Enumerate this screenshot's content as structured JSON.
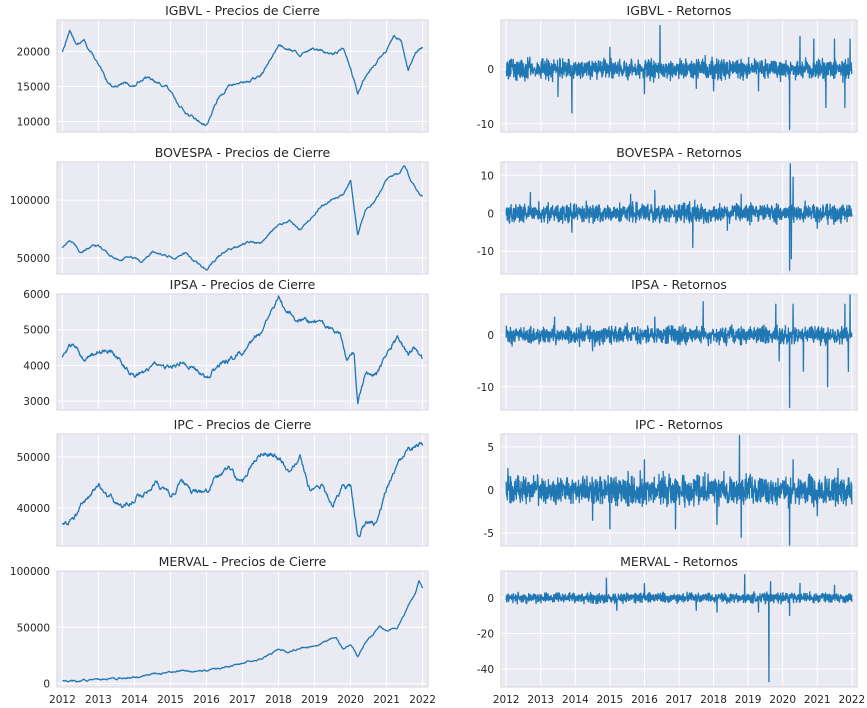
{
  "chart_data": [
    {
      "id": "igbvl-price",
      "type": "line",
      "title": "IGBVL - Precios de Cierre",
      "ylim": [
        8500,
        24500
      ],
      "yticks": [
        10000,
        15000,
        20000
      ],
      "ytick_labels": [
        "10000",
        "15000",
        "20000"
      ],
      "xlim": [
        2011.85,
        2022.15
      ],
      "xticks": [
        2012,
        2013,
        2014,
        2015,
        2016,
        2017,
        2018,
        2019,
        2020,
        2021,
        2022
      ],
      "xtick_labels": [],
      "grid": true,
      "noise": 250,
      "x": [
        2012.0,
        2012.2,
        2012.4,
        2012.6,
        2012.9,
        2013.2,
        2013.4,
        2013.7,
        2014.0,
        2014.3,
        2014.6,
        2014.9,
        2015.2,
        2015.5,
        2015.8,
        2016.0,
        2016.3,
        2016.6,
        2016.9,
        2017.2,
        2017.5,
        2017.8,
        2018.0,
        2018.3,
        2018.6,
        2018.9,
        2019.2,
        2019.5,
        2019.8,
        2020.0,
        2020.2,
        2020.4,
        2020.7,
        2021.0,
        2021.2,
        2021.4,
        2021.6,
        2021.8,
        2022.0
      ],
      "y": [
        20000,
        23000,
        21000,
        21500,
        19000,
        16000,
        15000,
        15500,
        15000,
        16500,
        15500,
        15000,
        12500,
        11000,
        10000,
        9500,
        13000,
        15000,
        15500,
        15800,
        16500,
        19000,
        21000,
        20500,
        19500,
        20500,
        20000,
        19500,
        20500,
        17500,
        14000,
        16500,
        18500,
        20000,
        22500,
        21500,
        17500,
        19500,
        20500
      ]
    },
    {
      "id": "igbvl-returns",
      "type": "line",
      "title": "IGBVL - Retornos",
      "ylim": [
        -11.5,
        9
      ],
      "yticks": [
        -10,
        0
      ],
      "ytick_labels": [
        "-10",
        "0"
      ],
      "xlim": [
        2011.85,
        2022.15
      ],
      "xticks": [
        2012,
        2013,
        2014,
        2015,
        2016,
        2017,
        2018,
        2019,
        2020,
        2021,
        2022
      ],
      "xtick_labels": [],
      "grid": true,
      "noise": 1.8,
      "x": [
        2012.0,
        2022.0
      ],
      "y": [
        0,
        0
      ],
      "spikes": [
        [
          2013.5,
          -5
        ],
        [
          2013.9,
          -8
        ],
        [
          2015.0,
          4
        ],
        [
          2016.0,
          -4.5
        ],
        [
          2016.45,
          8
        ],
        [
          2017.5,
          -3.5
        ],
        [
          2018.0,
          -4
        ],
        [
          2019.3,
          -4
        ],
        [
          2020.2,
          -11
        ],
        [
          2020.5,
          6
        ],
        [
          2020.9,
          5.5
        ],
        [
          2021.25,
          -7
        ],
        [
          2021.5,
          5.5
        ],
        [
          2021.8,
          -7
        ],
        [
          2021.95,
          5.5
        ]
      ]
    },
    {
      "id": "bovespa-price",
      "type": "line",
      "title": "BOVESPA - Precios de Cierre",
      "ylim": [
        36000,
        133000
      ],
      "yticks": [
        50000,
        100000
      ],
      "ytick_labels": [
        "50000",
        "100000"
      ],
      "xlim": [
        2011.85,
        2022.15
      ],
      "xticks": [
        2012,
        2013,
        2014,
        2015,
        2016,
        2017,
        2018,
        2019,
        2020,
        2021,
        2022
      ],
      "xtick_labels": [],
      "grid": true,
      "noise": 1200,
      "x": [
        2012.0,
        2012.2,
        2012.5,
        2012.8,
        2013.0,
        2013.3,
        2013.6,
        2013.9,
        2014.2,
        2014.5,
        2014.8,
        2015.1,
        2015.4,
        2015.7,
        2016.0,
        2016.3,
        2016.6,
        2016.9,
        2017.2,
        2017.5,
        2017.8,
        2018.0,
        2018.3,
        2018.6,
        2018.9,
        2019.2,
        2019.5,
        2019.8,
        2020.0,
        2020.2,
        2020.4,
        2020.7,
        2021.0,
        2021.3,
        2021.5,
        2021.7,
        2021.9,
        2022.0
      ],
      "y": [
        58000,
        66000,
        55000,
        60000,
        60000,
        52000,
        48000,
        52000,
        46000,
        55000,
        52000,
        50000,
        54000,
        46000,
        40000,
        50000,
        57000,
        60000,
        64000,
        63000,
        73000,
        78000,
        82000,
        74000,
        85000,
        95000,
        100000,
        105000,
        116000,
        70000,
        90000,
        100000,
        118000,
        122000,
        130000,
        115000,
        105000,
        104000
      ]
    },
    {
      "id": "bovespa-returns",
      "type": "line",
      "title": "BOVESPA - Retornos",
      "ylim": [
        -16,
        13.5
      ],
      "yticks": [
        -10,
        0,
        10
      ],
      "ytick_labels": [
        "-10",
        "0",
        "10"
      ],
      "xlim": [
        2011.85,
        2022.15
      ],
      "xticks": [
        2012,
        2013,
        2014,
        2015,
        2016,
        2017,
        2018,
        2019,
        2020,
        2021,
        2022
      ],
      "xtick_labels": [],
      "grid": true,
      "noise": 2.4,
      "x": [
        2012.0,
        2022.0
      ],
      "y": [
        0,
        0
      ],
      "spikes": [
        [
          2012.7,
          5.5
        ],
        [
          2013.9,
          -5
        ],
        [
          2015.6,
          5
        ],
        [
          2016.3,
          6
        ],
        [
          2017.4,
          -9
        ],
        [
          2018.4,
          -4.5
        ],
        [
          2018.8,
          5
        ],
        [
          2020.2,
          -15
        ],
        [
          2020.22,
          13
        ],
        [
          2020.25,
          -12
        ],
        [
          2020.3,
          9.5
        ],
        [
          2021.0,
          -4
        ]
      ]
    },
    {
      "id": "ipsa-price",
      "type": "line",
      "title": "IPSA - Precios de Cierre",
      "ylim": [
        2750,
        6000
      ],
      "yticks": [
        3000,
        4000,
        5000,
        6000
      ],
      "ytick_labels": [
        "3000",
        "4000",
        "5000",
        "6000"
      ],
      "xlim": [
        2011.85,
        2022.15
      ],
      "xticks": [
        2012,
        2013,
        2014,
        2015,
        2016,
        2017,
        2018,
        2019,
        2020,
        2021,
        2022
      ],
      "xtick_labels": [],
      "grid": true,
      "noise": 90,
      "x": [
        2012.0,
        2012.3,
        2012.6,
        2013.0,
        2013.3,
        2013.7,
        2014.0,
        2014.3,
        2014.6,
        2015.0,
        2015.3,
        2015.7,
        2016.0,
        2016.4,
        2016.8,
        2017.2,
        2017.5,
        2017.8,
        2018.0,
        2018.3,
        2018.7,
        2019.0,
        2019.4,
        2019.7,
        2019.9,
        2020.1,
        2020.2,
        2020.4,
        2020.7,
        2021.0,
        2021.3,
        2021.6,
        2021.8,
        2022.0
      ],
      "y": [
        4200,
        4600,
        4200,
        4400,
        4500,
        4000,
        3700,
        3800,
        4000,
        3900,
        4100,
        3900,
        3650,
        4050,
        4200,
        4600,
        4900,
        5600,
        5900,
        5500,
        5200,
        5300,
        5000,
        4900,
        4200,
        4300,
        3000,
        3700,
        3750,
        4300,
        4800,
        4300,
        4500,
        4200
      ]
    },
    {
      "id": "ipsa-returns",
      "type": "line",
      "title": "IPSA - Retornos",
      "ylim": [
        -14.5,
        8
      ],
      "yticks": [
        -10,
        0
      ],
      "ytick_labels": [
        "-10",
        "0"
      ],
      "xlim": [
        2011.85,
        2022.15
      ],
      "xticks": [
        2012,
        2013,
        2014,
        2015,
        2016,
        2017,
        2018,
        2019,
        2020,
        2021,
        2022
      ],
      "xtick_labels": [],
      "grid": true,
      "noise": 1.6,
      "x": [
        2012.0,
        2022.0
      ],
      "y": [
        0,
        0
      ],
      "spikes": [
        [
          2013.4,
          3.5
        ],
        [
          2014.5,
          -3
        ],
        [
          2016.3,
          3.5
        ],
        [
          2017.7,
          6.5
        ],
        [
          2019.8,
          6
        ],
        [
          2019.9,
          -5
        ],
        [
          2020.2,
          -14
        ],
        [
          2020.3,
          6
        ],
        [
          2020.6,
          -7
        ],
        [
          2021.3,
          -10
        ],
        [
          2021.8,
          6
        ],
        [
          2021.95,
          8
        ],
        [
          2021.9,
          -7
        ]
      ]
    },
    {
      "id": "ipc-price",
      "type": "line",
      "title": "IPC - Precios de Cierre",
      "ylim": [
        32500,
        54500
      ],
      "yticks": [
        40000,
        50000
      ],
      "ytick_labels": [
        "40000",
        "50000"
      ],
      "xlim": [
        2011.85,
        2022.15
      ],
      "xticks": [
        2012,
        2013,
        2014,
        2015,
        2016,
        2017,
        2018,
        2019,
        2020,
        2021,
        2022
      ],
      "xtick_labels": [],
      "grid": true,
      "noise": 700,
      "x": [
        2012.0,
        2012.3,
        2012.6,
        2013.0,
        2013.3,
        2013.6,
        2014.0,
        2014.3,
        2014.6,
        2015.0,
        2015.3,
        2015.7,
        2016.0,
        2016.3,
        2016.6,
        2017.0,
        2017.3,
        2017.6,
        2018.0,
        2018.3,
        2018.6,
        2018.9,
        2019.2,
        2019.5,
        2019.8,
        2020.0,
        2020.2,
        2020.4,
        2020.7,
        2021.0,
        2021.3,
        2021.6,
        2021.8,
        2022.0
      ],
      "y": [
        37000,
        38000,
        41000,
        45000,
        42000,
        40000,
        42000,
        43000,
        45000,
        42000,
        45000,
        43000,
        43000,
        46000,
        48000,
        45000,
        49000,
        51000,
        50000,
        47000,
        50000,
        43000,
        44000,
        40000,
        44000,
        44000,
        35000,
        37000,
        37000,
        44000,
        49000,
        51000,
        52000,
        52500
      ]
    },
    {
      "id": "ipc-returns",
      "type": "line",
      "title": "IPC - Retornos",
      "ylim": [
        -6.5,
        6.5
      ],
      "yticks": [
        -5,
        0,
        5
      ],
      "ytick_labels": [
        "-5",
        "0",
        "5"
      ],
      "xlim": [
        2011.85,
        2022.15
      ],
      "xticks": [
        2012,
        2013,
        2014,
        2015,
        2016,
        2017,
        2018,
        2019,
        2020,
        2021,
        2022
      ],
      "xtick_labels": [],
      "grid": true,
      "noise": 1.6,
      "x": [
        2012.0,
        2022.0
      ],
      "y": [
        0,
        0
      ],
      "spikes": [
        [
          2012.05,
          2.5
        ],
        [
          2014.5,
          -3.5
        ],
        [
          2015.0,
          -4.5
        ],
        [
          2016.0,
          3.5
        ],
        [
          2016.9,
          -4.5
        ],
        [
          2018.1,
          -4
        ],
        [
          2018.75,
          6.3
        ],
        [
          2018.8,
          -5.5
        ],
        [
          2020.2,
          -6.5
        ],
        [
          2020.3,
          3.5
        ],
        [
          2021.0,
          -3
        ],
        [
          2021.6,
          2.5
        ]
      ]
    },
    {
      "id": "merval-price",
      "type": "line",
      "title": "MERVAL - Precios de Cierre",
      "ylim": [
        -3000,
        100000
      ],
      "yticks": [
        0,
        50000,
        100000
      ],
      "ytick_labels": [
        "0",
        "50000",
        "100000"
      ],
      "xlim": [
        2011.85,
        2022.15
      ],
      "xticks": [
        2012,
        2013,
        2014,
        2015,
        2016,
        2017,
        2018,
        2019,
        2020,
        2021,
        2022
      ],
      "xtick_labels": [
        "2012",
        "2013",
        "2014",
        "2015",
        "2016",
        "2017",
        "2018",
        "2019",
        "2020",
        "2021",
        "2022"
      ],
      "grid": true,
      "noise": 1000,
      "x": [
        2012.0,
        2012.5,
        2013.0,
        2013.5,
        2014.0,
        2014.5,
        2015.0,
        2015.3,
        2015.6,
        2016.0,
        2016.5,
        2017.0,
        2017.5,
        2018.0,
        2018.3,
        2018.6,
        2019.0,
        2019.3,
        2019.6,
        2019.8,
        2020.0,
        2020.2,
        2020.5,
        2020.8,
        2021.0,
        2021.3,
        2021.5,
        2021.6,
        2021.7,
        2021.8,
        2021.9,
        2022.0
      ],
      "y": [
        3000,
        2500,
        3500,
        4000,
        6000,
        8000,
        10000,
        12000,
        10000,
        12000,
        15000,
        18000,
        22000,
        30000,
        28000,
        31000,
        33000,
        38000,
        40000,
        30000,
        35000,
        25000,
        40000,
        50000,
        47000,
        50000,
        62000,
        70000,
        75000,
        80000,
        92000,
        85000
      ]
    },
    {
      "id": "merval-returns",
      "type": "line",
      "title": "MERVAL - Retornos",
      "ylim": [
        -50,
        15
      ],
      "yticks": [
        -40,
        -20,
        0
      ],
      "ytick_labels": [
        "-40",
        "-20",
        "0"
      ],
      "xlim": [
        2011.85,
        2022.15
      ],
      "xticks": [
        2012,
        2013,
        2014,
        2015,
        2016,
        2017,
        2018,
        2019,
        2020,
        2021,
        2022
      ],
      "xtick_labels": [
        "2012",
        "2013",
        "2014",
        "2015",
        "2016",
        "2017",
        "2018",
        "2019",
        "2020",
        "2021",
        "2022"
      ],
      "grid": true,
      "noise": 2.6,
      "x": [
        2012.0,
        2022.0
      ],
      "y": [
        0,
        0
      ],
      "spikes": [
        [
          2014.9,
          11
        ],
        [
          2015.2,
          -7
        ],
        [
          2016.0,
          8
        ],
        [
          2017.5,
          -7
        ],
        [
          2018.1,
          -8
        ],
        [
          2018.9,
          13
        ],
        [
          2019.3,
          -8
        ],
        [
          2019.6,
          -47
        ],
        [
          2019.65,
          9
        ],
        [
          2020.2,
          -10
        ],
        [
          2020.5,
          8
        ],
        [
          2021.5,
          7
        ]
      ]
    }
  ]
}
